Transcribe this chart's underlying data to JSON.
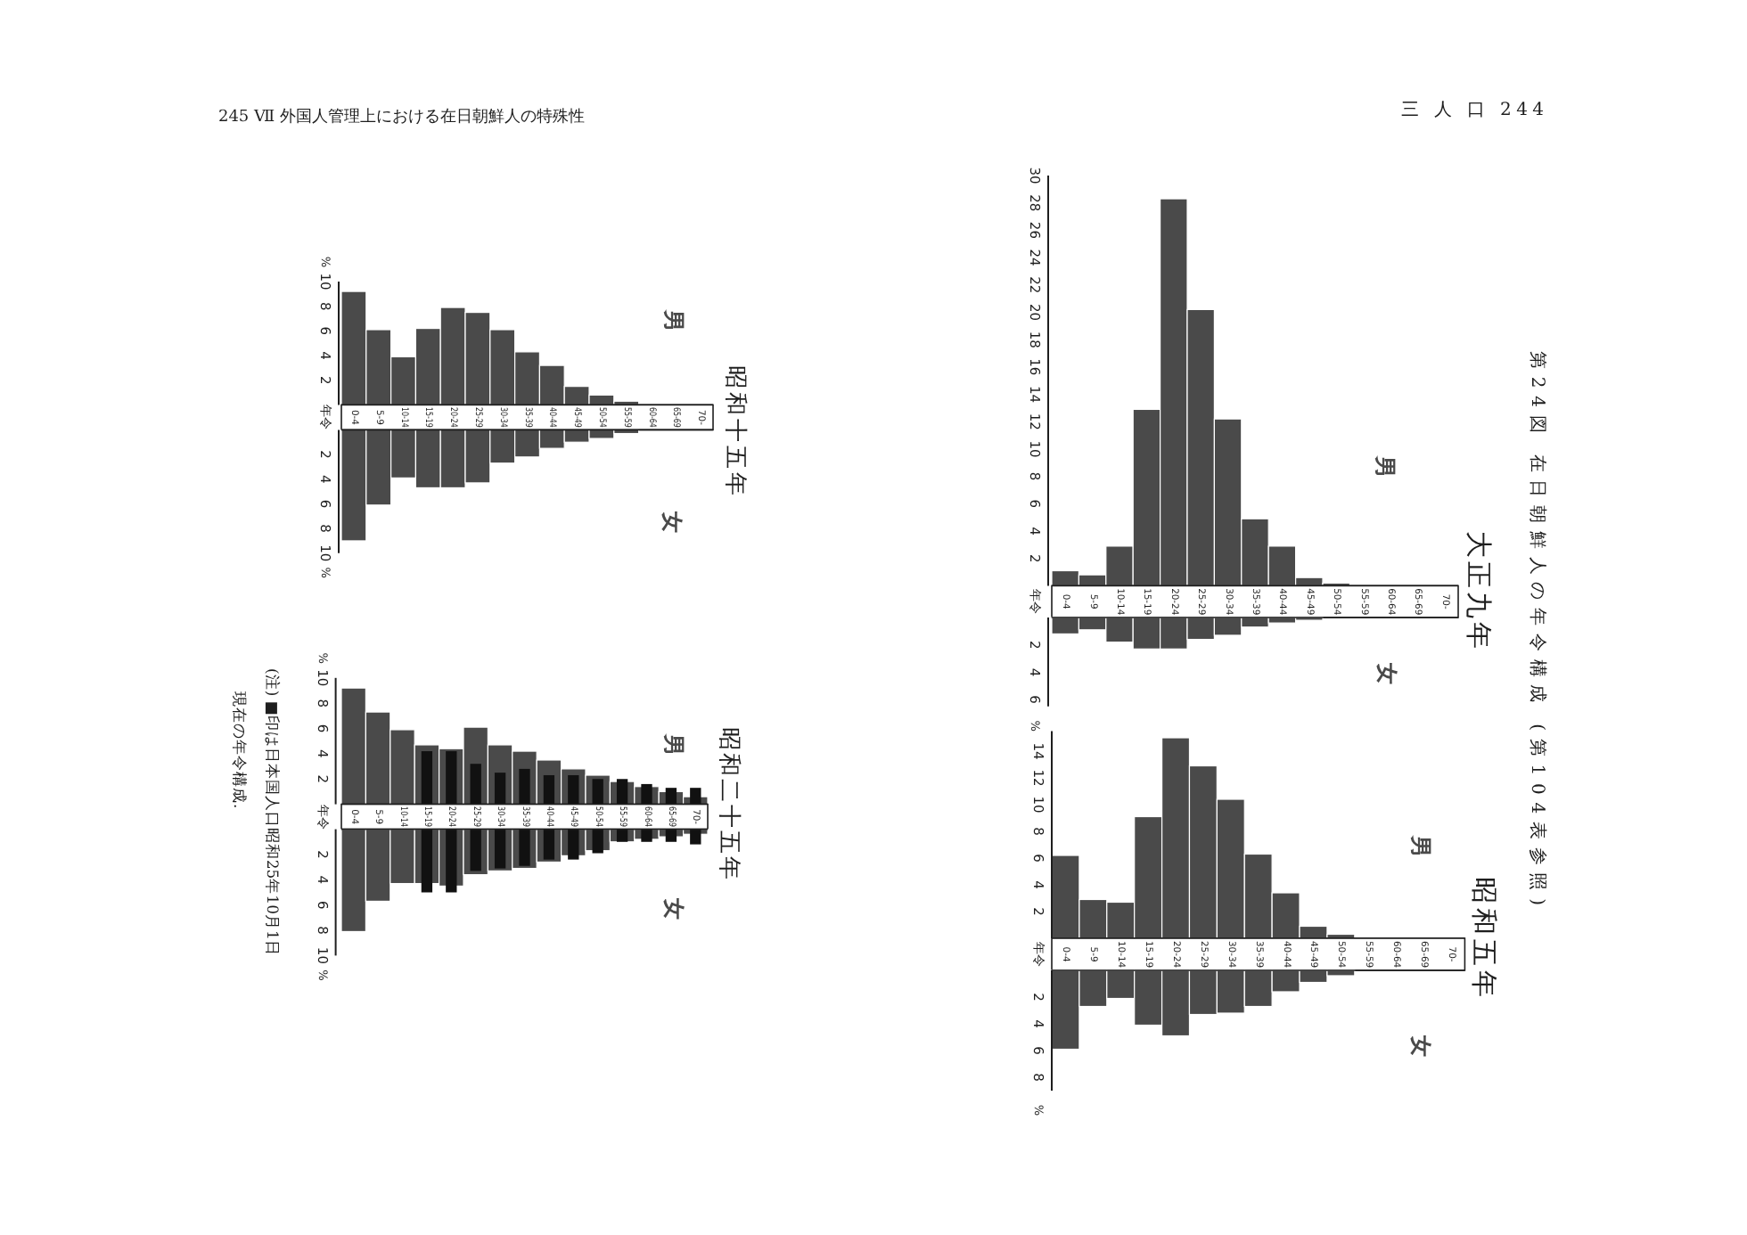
{
  "chart_data": [
    {
      "type": "bar",
      "title": "大正九年",
      "categories": [
        "0-4",
        "5-9",
        "10-14",
        "15-19",
        "20-24",
        "25-29",
        "30-34",
        "35-39",
        "40-44",
        "45-49",
        "50-54",
        "55-59",
        "60-64",
        "65-69",
        "70-"
      ],
      "series": [
        {
          "name": "男",
          "color": "#4a4a4a",
          "values": [
            1.1,
            0.8,
            2.9,
            12.9,
            28.3,
            20.2,
            12.2,
            4.9,
            2.9,
            0.6,
            0.2,
            0,
            0,
            0,
            0
          ]
        }
      ],
      "ylim": [
        0,
        30
      ],
      "yticks": [
        2,
        4,
        6,
        8,
        10,
        12,
        14,
        16,
        18,
        20,
        22,
        24,
        26,
        28,
        30
      ],
      "annotations": [
        "年令",
        "第24図 在日朝鮮人の年令構成 (第104表参照)",
        "三 人 口 244"
      ]
    },
    {
      "type": "bar",
      "ylabel": "%",
      "tick_labels": "y",
      "categories": [
        null,
        null,
        null,
        null,
        null,
        null,
        null,
        null,
        null,
        null,
        null,
        null,
        null,
        null,
        null
      ],
      "series": [
        {
          "name": "女",
          "color": "#4a4a4a",
          "values": [
            1.2,
            0.9,
            1.8,
            2.3,
            2.3,
            1.6,
            1.3,
            0.7,
            0.4,
            0.2,
            0,
            0,
            0,
            0,
            0
          ]
        }
      ],
      "ylim": [
        6.5,
        0
      ],
      "yticks": [
        2,
        4,
        6
      ]
    },
    {
      "type": "bar",
      "title": "昭和五年",
      "categories": [
        "0-4",
        "5-9",
        "10-14",
        "15-19",
        "20-24",
        "25-29",
        "30-34",
        "35-39",
        "40-44",
        "45-49",
        "50-54",
        "55-59",
        "60-64",
        "65-69",
        "70-"
      ],
      "series": [
        {
          "name": "男",
          "color": "#4a4a4a",
          "values": [
            6.2,
            2.9,
            2.7,
            9.1,
            15.0,
            12.9,
            10.4,
            6.3,
            3.4,
            0.9,
            0.3,
            0,
            0,
            0,
            0
          ]
        }
      ],
      "ylim": [
        0,
        15.5
      ],
      "yticks": [
        2,
        4,
        6,
        8,
        10,
        12,
        14
      ],
      "annotations": [
        "年令"
      ]
    },
    {
      "type": "bar",
      "ylabel": "%",
      "tick_labels": "y",
      "categories": [
        null,
        null,
        null,
        null,
        null,
        null,
        null,
        null,
        null,
        null,
        null,
        null,
        null,
        null,
        null
      ],
      "series": [
        {
          "name": "女",
          "color": "#4a4a4a",
          "values": [
            5.9,
            2.7,
            2.1,
            4.1,
            4.9,
            3.3,
            3.2,
            2.7,
            1.6,
            0.9,
            0.4,
            0,
            0,
            0,
            0
          ]
        }
      ],
      "ylim": [
        9,
        0
      ],
      "yticks": [
        2,
        4,
        6,
        8
      ]
    },
    {
      "type": "bar",
      "title": "昭和十五年",
      "ylabel": "%",
      "categories": [
        "0-4",
        "5-9",
        "10-14",
        "15-19",
        "20-24",
        "25-29",
        "30-34",
        "35-39",
        "40-44",
        "45-49",
        "50-54",
        "55-59",
        "60-64",
        "65-69",
        "70-"
      ],
      "series": [
        {
          "name": "男",
          "color": "#4a4a4a",
          "values": [
            9.2,
            6.1,
            3.9,
            6.2,
            7.9,
            7.5,
            6.1,
            4.3,
            3.2,
            1.5,
            0.8,
            0.3,
            0,
            0,
            0
          ]
        }
      ],
      "ylim": [
        0,
        10
      ],
      "yticks": [
        2,
        4,
        6,
        8,
        10
      ],
      "annotations": [
        "年令",
        "245 Ⅶ 外国人管理上における在日朝鮮人の特殊性"
      ]
    },
    {
      "type": "bar",
      "ylabel": "%",
      "tick_labels": "y",
      "categories": [
        null,
        null,
        null,
        null,
        null,
        null,
        null,
        null,
        null,
        null,
        null,
        null,
        null,
        null,
        null
      ],
      "series": [
        {
          "name": "女",
          "color": "#4a4a4a",
          "values": [
            9.0,
            6.1,
            3.9,
            4.7,
            4.7,
            4.3,
            2.7,
            2.2,
            1.5,
            1.0,
            0.7,
            0.3,
            0,
            0,
            0
          ]
        }
      ],
      "ylim": [
        10,
        0
      ],
      "yticks": [
        2,
        4,
        6,
        8,
        10
      ]
    },
    {
      "type": "bar",
      "title": "昭和二十五年",
      "ylabel": "%",
      "categories": [
        "0-4",
        "5-9",
        "10-14",
        "15-19",
        "20-24",
        "25-29",
        "30-34",
        "35-39",
        "40-44",
        "45-49",
        "50-54",
        "55-59",
        "60-64",
        "65-69",
        "70-"
      ],
      "series": [
        {
          "name": "男",
          "color": "#4a4a4a",
          "values": [
            9.2,
            7.3,
            5.9,
            4.7,
            4.4,
            6.1,
            4.7,
            4.2,
            3.5,
            2.8,
            2.3,
            1.8,
            1.4,
            1.0,
            0.6
          ]
        },
        {
          "color": "#111111",
          "values": [
            null,
            null,
            null,
            4.2,
            4.2,
            3.2,
            2.5,
            2.8,
            2.3,
            2.3,
            2.0,
            2.0,
            1.6,
            1.3,
            1.3
          ]
        }
      ],
      "ylim": [
        0,
        10
      ],
      "yticks": [
        2,
        4,
        6,
        8,
        10
      ],
      "annotations": [
        "年令",
        "(注) ■印は日本国人口昭和25年10月1日現在の年令構成."
      ]
    },
    {
      "type": "bar",
      "ylabel": "%",
      "tick_labels": "y",
      "categories": [
        null,
        null,
        null,
        null,
        null,
        null,
        null,
        null,
        null,
        null,
        null,
        null,
        null,
        null,
        null
      ],
      "series": [
        {
          "name": "女",
          "color": "#4a4a4a",
          "values": [
            8.1,
            5.7,
            4.3,
            4.3,
            4.5,
            3.6,
            3.3,
            3.1,
            2.6,
            2.1,
            1.7,
            1.0,
            0.8,
            0.6,
            0.4
          ]
        },
        {
          "color": "#111111",
          "values": [
            null,
            null,
            null,
            5.0,
            5.0,
            3.3,
            3.1,
            2.9,
            2.4,
            2.4,
            1.9,
            1.0,
            1.0,
            1.0,
            1.2
          ]
        }
      ],
      "ylim": [
        10,
        0
      ],
      "yticks": [
        2,
        4,
        6,
        8,
        10
      ]
    }
  ]
}
